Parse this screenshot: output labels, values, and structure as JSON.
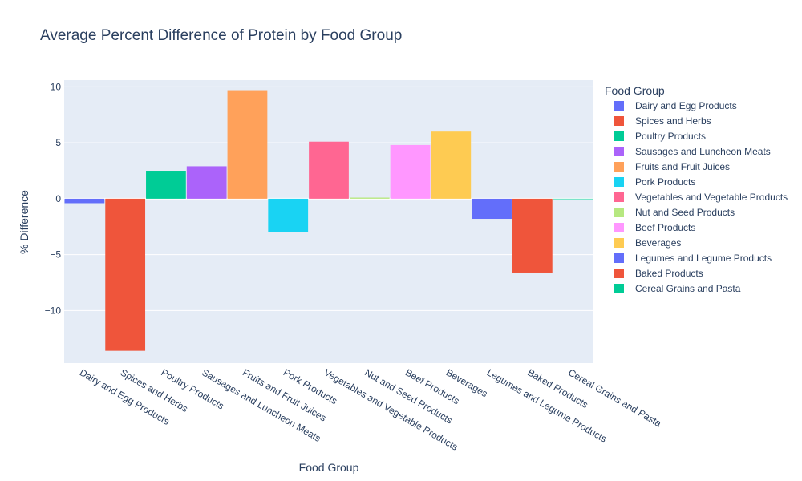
{
  "chart_data": {
    "type": "bar",
    "title": "Average Percent Difference of Protein by Food Group",
    "xlabel": "Food Group",
    "ylabel": "% Difference",
    "ylim": [
      -14.7,
      10.6
    ],
    "yticks": [
      10,
      5,
      0,
      -5,
      -10
    ],
    "ytick_labels": [
      "10",
      "5",
      "0",
      "−5",
      "−10"
    ],
    "grid": true,
    "legend_title": "Food Group",
    "legend_position": "right",
    "categories": [
      "Dairy and Egg Products",
      "Spices and Herbs",
      "Poultry Products",
      "Sausages and Luncheon Meats",
      "Fruits and Fruit Juices",
      "Pork Products",
      "Vegetables and Vegetable Products",
      "Nut and Seed Products",
      "Beef Products",
      "Beverages",
      "Legumes and Legume Products",
      "Baked Products",
      "Cereal Grains and Pasta"
    ],
    "values": [
      -0.4,
      -13.6,
      2.5,
      2.9,
      9.7,
      -3.0,
      5.1,
      0.1,
      4.8,
      6.0,
      -1.8,
      -6.6,
      0.0
    ],
    "colors": [
      "#636efa",
      "#EF553B",
      "#00cc96",
      "#ab63fa",
      "#FFA15A",
      "#19d3f3",
      "#FF6692",
      "#B6E880",
      "#FF97FF",
      "#FECB52",
      "#636efa",
      "#EF553B",
      "#00cc96"
    ]
  }
}
